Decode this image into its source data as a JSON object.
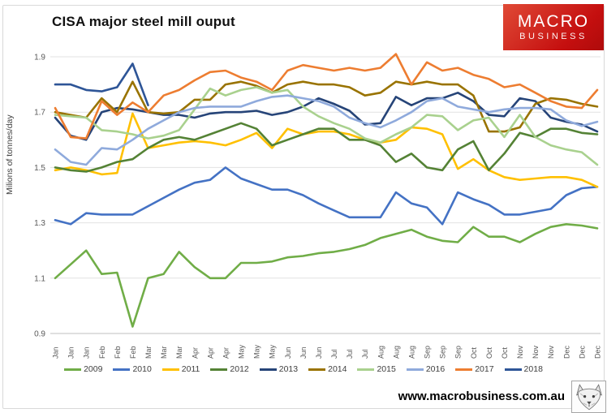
{
  "header": {
    "title": "CISA major steel mill ouput"
  },
  "logo": {
    "line1": "MACRO",
    "line2": "BUSINESS"
  },
  "footer": {
    "website": "www.macrobusiness.com.au",
    "fox_icon": "fox-sketch-logo"
  },
  "chart_data": {
    "type": "line",
    "title": "CISA major steel mill ouput",
    "xlabel": "",
    "ylabel": "Milions of tonnes/day",
    "ylim": [
      0.9,
      1.9
    ],
    "y_ticks": [
      1.9,
      1.7,
      1.5,
      1.3,
      1.1,
      0.9
    ],
    "grid": true,
    "legend_position": "bottom",
    "x_labels": [
      "Jan",
      "Jan",
      "Jan",
      "Feb",
      "Feb",
      "Feb",
      "Mar",
      "Mar",
      "Mar",
      "Apr",
      "Apr",
      "Apr",
      "May",
      "May",
      "May",
      "Jun",
      "Jun",
      "Jun",
      "Jul",
      "Jul",
      "Jul",
      "Aug",
      "Aug",
      "Aug",
      "Sep",
      "Sep",
      "Sep",
      "Oct",
      "Oct",
      "Oct",
      "Nov",
      "Nov",
      "Nov",
      "Dec",
      "Dec",
      "Dec"
    ],
    "grid_color": "#e2e2e2",
    "axis_text_color": "#595959",
    "series": [
      {
        "name": "2009",
        "color": "#70AD47",
        "values": [
          1.1,
          1.15,
          1.2,
          1.115,
          1.12,
          0.925,
          1.1,
          1.115,
          1.195,
          1.14,
          1.1,
          1.1,
          1.155,
          1.155,
          1.16,
          1.175,
          1.18,
          1.19,
          1.195,
          1.205,
          1.22,
          1.245,
          1.26,
          1.275,
          1.25,
          1.235,
          1.23,
          1.285,
          1.25,
          1.25,
          1.23,
          1.26,
          1.285,
          1.295,
          1.29,
          1.28
        ]
      },
      {
        "name": "2010",
        "color": "#4472C4",
        "values": [
          1.31,
          1.295,
          1.335,
          1.33,
          1.33,
          1.33,
          1.36,
          1.39,
          1.42,
          1.445,
          1.455,
          1.5,
          1.46,
          1.44,
          1.42,
          1.42,
          1.4,
          1.37,
          1.345,
          1.32,
          1.32,
          1.32,
          1.41,
          1.37,
          1.355,
          1.295,
          1.41,
          1.385,
          1.365,
          1.33,
          1.33,
          1.34,
          1.35,
          1.4,
          1.425,
          1.43
        ]
      },
      {
        "name": "2011",
        "color": "#FFC000",
        "values": [
          1.49,
          1.5,
          1.49,
          1.475,
          1.48,
          1.695,
          1.57,
          1.58,
          1.59,
          1.595,
          1.59,
          1.58,
          1.6,
          1.625,
          1.57,
          1.64,
          1.62,
          1.63,
          1.63,
          1.62,
          1.6,
          1.59,
          1.6,
          1.645,
          1.64,
          1.62,
          1.495,
          1.53,
          1.49,
          1.465,
          1.455,
          1.46,
          1.465,
          1.465,
          1.455,
          1.43
        ]
      },
      {
        "name": "2012",
        "color": "#548235",
        "values": [
          1.5,
          1.49,
          1.485,
          1.5,
          1.52,
          1.53,
          1.57,
          1.6,
          1.61,
          1.6,
          1.62,
          1.64,
          1.66,
          1.64,
          1.58,
          1.6,
          1.62,
          1.64,
          1.64,
          1.6,
          1.6,
          1.58,
          1.52,
          1.55,
          1.5,
          1.49,
          1.565,
          1.595,
          1.49,
          1.55,
          1.625,
          1.61,
          1.64,
          1.64,
          1.625,
          1.62
        ]
      },
      {
        "name": "2013",
        "color": "#264478",
        "values": [
          1.68,
          1.615,
          1.6,
          1.7,
          1.715,
          1.71,
          1.7,
          1.69,
          1.69,
          1.68,
          1.695,
          1.7,
          1.7,
          1.705,
          1.69,
          1.7,
          1.72,
          1.75,
          1.73,
          1.705,
          1.655,
          1.66,
          1.755,
          1.725,
          1.75,
          1.75,
          1.77,
          1.74,
          1.69,
          1.685,
          1.75,
          1.74,
          1.68,
          1.665,
          1.655,
          1.63
        ]
      },
      {
        "name": "2014",
        "color": "#997300",
        "values": [
          1.7,
          1.69,
          1.68,
          1.75,
          1.7,
          1.81,
          1.7,
          1.695,
          1.7,
          1.745,
          1.745,
          1.8,
          1.81,
          1.795,
          1.77,
          1.8,
          1.81,
          1.8,
          1.8,
          1.79,
          1.76,
          1.77,
          1.81,
          1.8,
          1.81,
          1.8,
          1.8,
          1.76,
          1.63,
          1.63,
          1.645,
          1.73,
          1.75,
          1.745,
          1.73,
          1.72
        ]
      },
      {
        "name": "2015",
        "color": "#A9D18E",
        "values": [
          1.69,
          1.685,
          1.68,
          1.635,
          1.63,
          1.62,
          1.605,
          1.615,
          1.635,
          1.71,
          1.785,
          1.76,
          1.78,
          1.79,
          1.77,
          1.78,
          1.72,
          1.685,
          1.66,
          1.64,
          1.605,
          1.59,
          1.62,
          1.645,
          1.69,
          1.685,
          1.635,
          1.67,
          1.68,
          1.61,
          1.69,
          1.61,
          1.58,
          1.565,
          1.555,
          1.51
        ]
      },
      {
        "name": "2016",
        "color": "#8FAADC",
        "values": [
          1.565,
          1.52,
          1.51,
          1.57,
          1.565,
          1.6,
          1.64,
          1.67,
          1.7,
          1.715,
          1.72,
          1.72,
          1.72,
          1.74,
          1.755,
          1.76,
          1.75,
          1.74,
          1.72,
          1.68,
          1.66,
          1.645,
          1.67,
          1.7,
          1.74,
          1.75,
          1.72,
          1.71,
          1.7,
          1.71,
          1.715,
          1.715,
          1.71,
          1.67,
          1.65,
          1.665
        ]
      },
      {
        "name": "2017",
        "color": "#ED7D31",
        "values": [
          1.715,
          1.61,
          1.605,
          1.74,
          1.69,
          1.735,
          1.7,
          1.76,
          1.78,
          1.815,
          1.845,
          1.85,
          1.825,
          1.81,
          1.78,
          1.85,
          1.87,
          1.86,
          1.85,
          1.86,
          1.85,
          1.86,
          1.91,
          1.8,
          1.88,
          1.85,
          1.86,
          1.835,
          1.82,
          1.79,
          1.8,
          1.77,
          1.74,
          1.72,
          1.715,
          1.78
        ]
      },
      {
        "name": "2018",
        "color": "#2E5597",
        "values": [
          1.8,
          1.8,
          1.78,
          1.775,
          1.79,
          1.875,
          1.725,
          null,
          null,
          null,
          null,
          null,
          null,
          null,
          null,
          null,
          null,
          null,
          null,
          null,
          null,
          null,
          null,
          null,
          null,
          null,
          null,
          null,
          null,
          null,
          null,
          null,
          null,
          null,
          null,
          null
        ]
      }
    ]
  }
}
